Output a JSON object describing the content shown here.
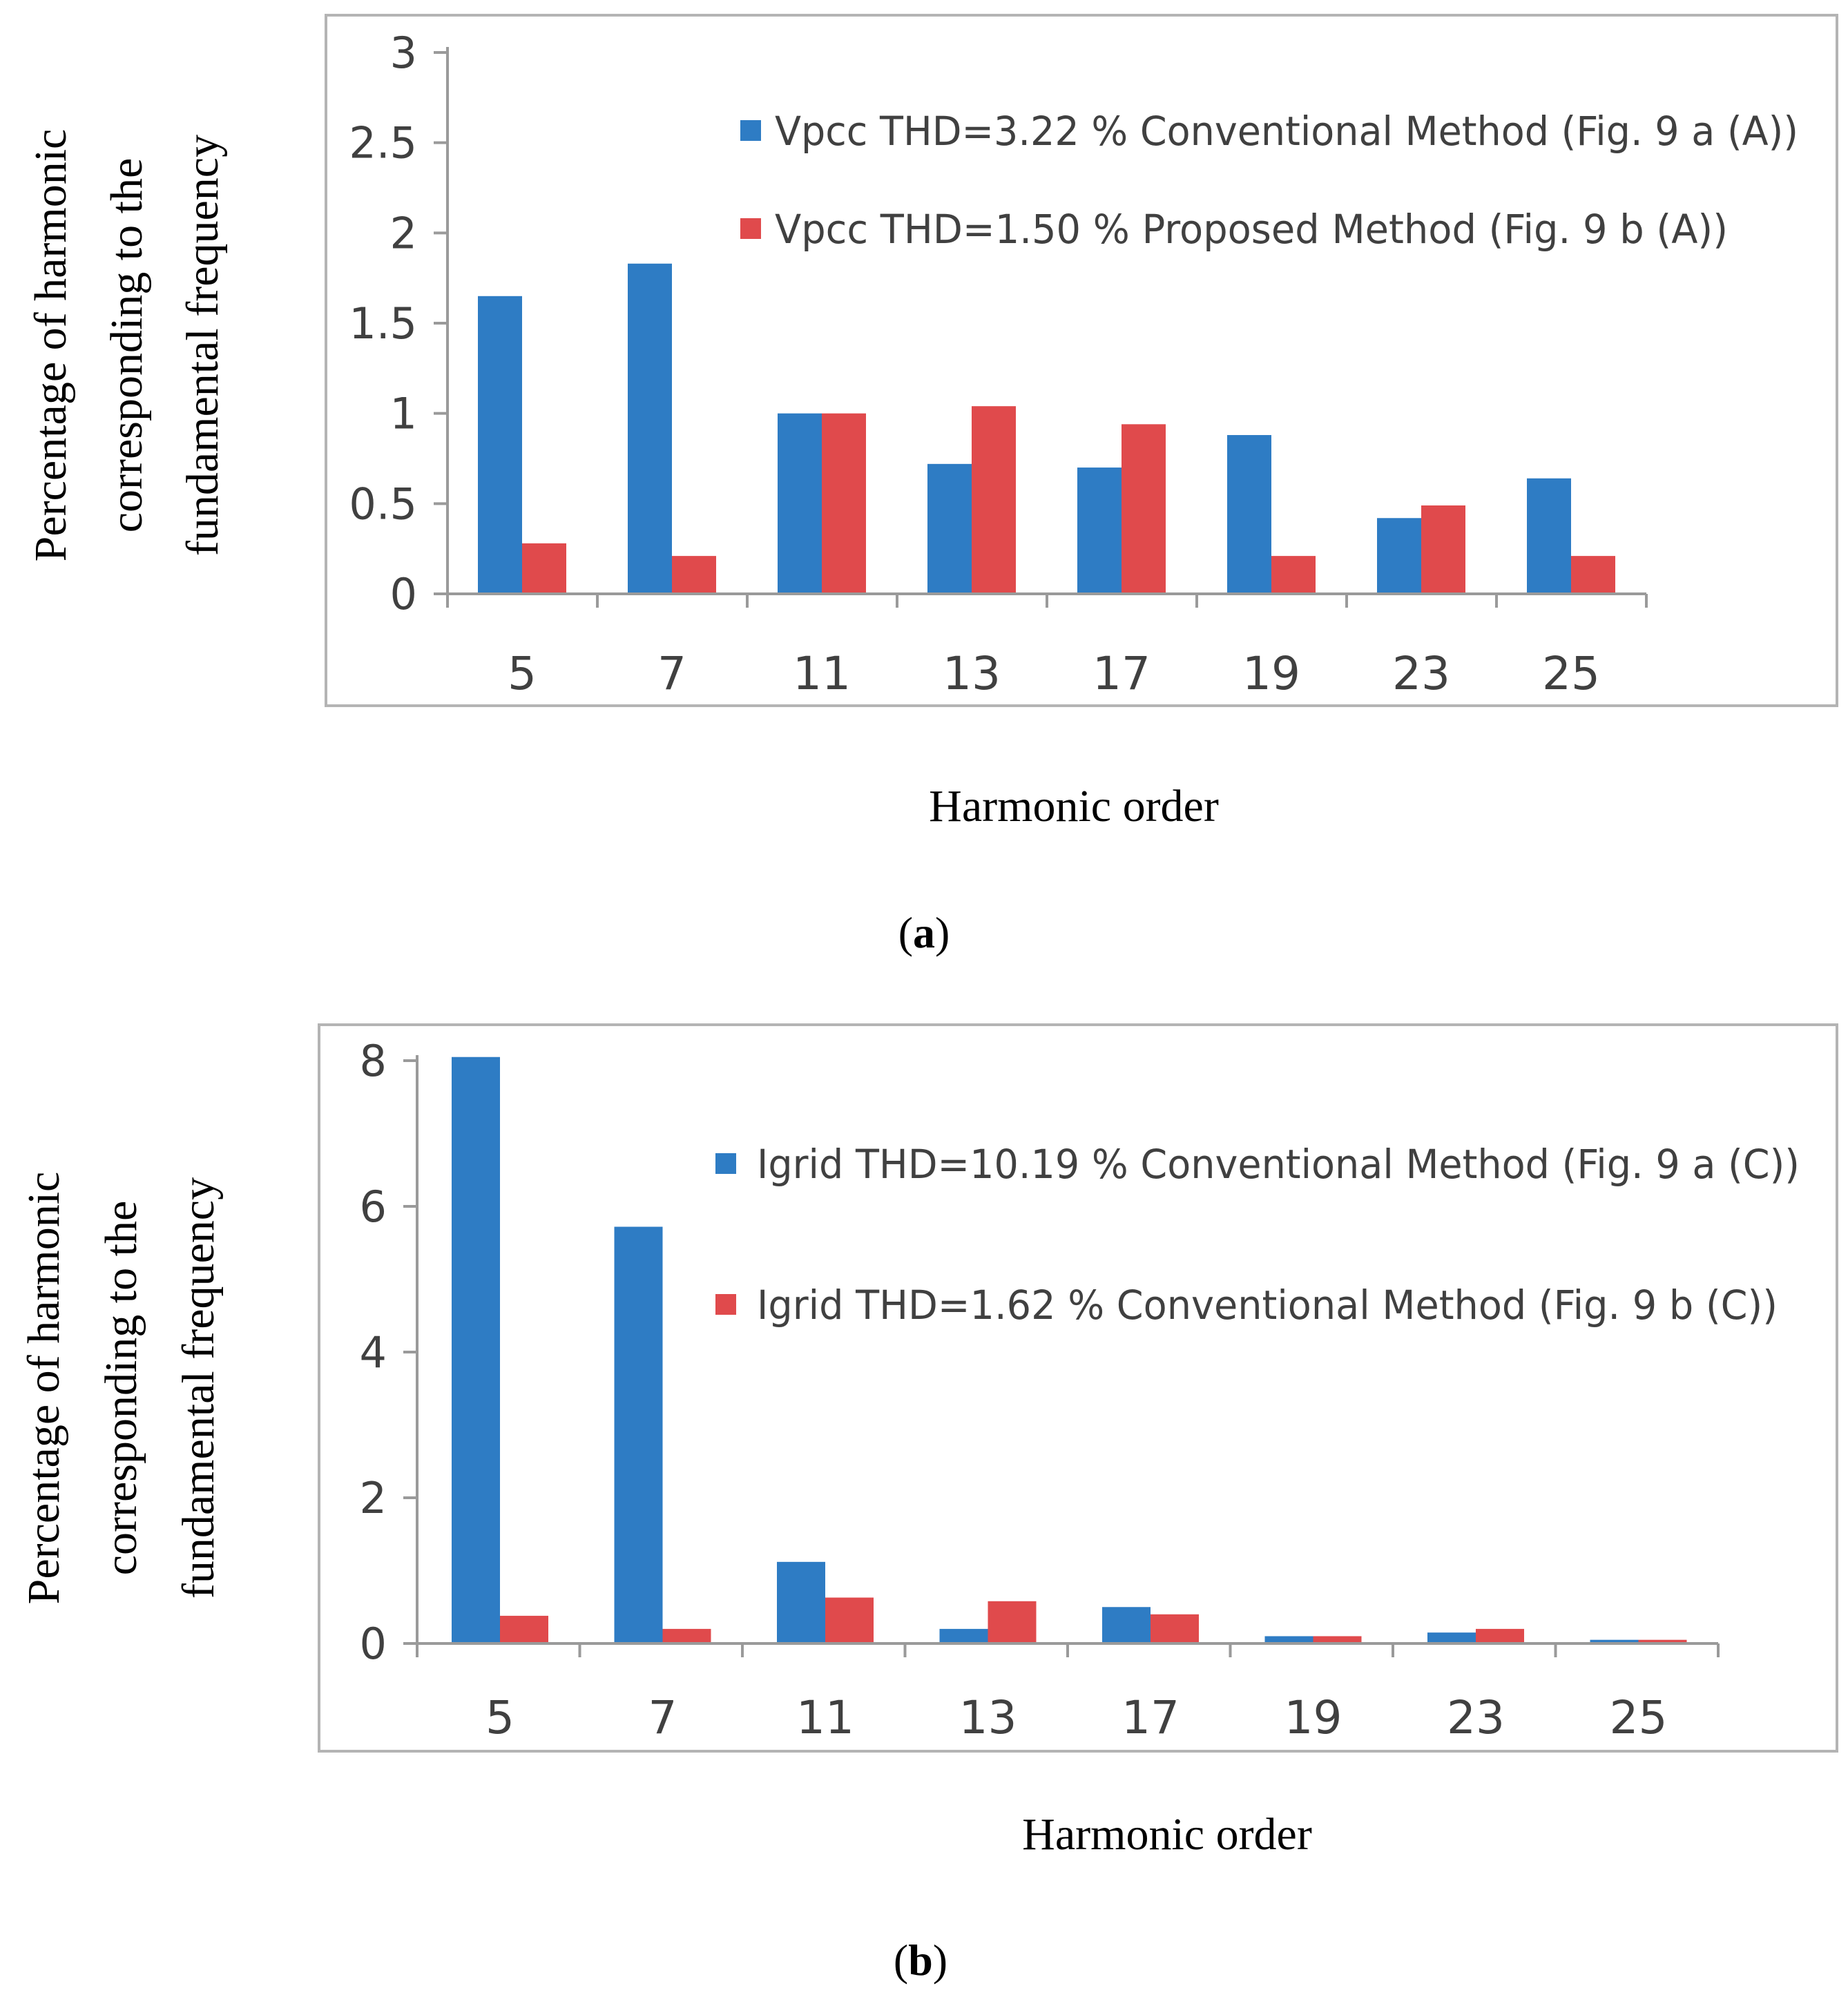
{
  "figure": {
    "panels": [
      {
        "label_open": "(",
        "label_letter": "a",
        "label_close": ")"
      },
      {
        "label_open": "(",
        "label_letter": "b",
        "label_close": ")"
      }
    ]
  },
  "chart_data": [
    {
      "type": "bar",
      "panel": "a",
      "categories": [
        "5",
        "7",
        "11",
        "13",
        "17",
        "19",
        "23",
        "25"
      ],
      "series": [
        {
          "name": "Vpcc THD=3.22 % Conventional Method (Fig. 9 a (A))",
          "color": "#2E7CC4",
          "values": [
            1.65,
            1.83,
            1.0,
            0.72,
            0.7,
            0.88,
            0.42,
            0.64
          ]
        },
        {
          "name": "Vpcc THD=1.50 % Proposed Method (Fig. 9 b (A))",
          "color": "#E04A4C",
          "values": [
            0.28,
            0.21,
            1.0,
            1.04,
            0.94,
            0.21,
            0.49,
            0.21
          ]
        }
      ],
      "yticks": [
        "0",
        "0.5",
        "1",
        "1.5",
        "2",
        "2.5",
        "3"
      ],
      "ylim": [
        0,
        3
      ],
      "ylabel_lines": [
        "Percentage of harmonic",
        "corresponding to the",
        "fundamental frequency"
      ],
      "xlabel": "Harmonic order",
      "legend_position": "top-right",
      "grid": false
    },
    {
      "type": "bar",
      "panel": "b",
      "categories": [
        "5",
        "7",
        "11",
        "13",
        "17",
        "19",
        "23",
        "25"
      ],
      "series": [
        {
          "name": "Igrid THD=10.19 % Conventional Method (Fig. 9 a (C))",
          "color": "#2E7CC4",
          "values": [
            8.05,
            5.72,
            1.12,
            0.2,
            0.5,
            0.1,
            0.15,
            0.05
          ]
        },
        {
          "name": "Igrid THD=1.62 % Conventional Method (Fig. 9 b (C))",
          "color": "#E04A4C",
          "values": [
            0.38,
            0.2,
            0.63,
            0.58,
            0.4,
            0.1,
            0.2,
            0.05
          ]
        }
      ],
      "yticks": [
        "0",
        "2",
        "4",
        "6",
        "8"
      ],
      "ylim": [
        0,
        8
      ],
      "ylabel_lines": [
        "Percentage of harmonic",
        "corresponding to the",
        "fundamental frequency"
      ],
      "xlabel": "Harmonic order",
      "legend_position": "top-right",
      "grid": false
    }
  ]
}
